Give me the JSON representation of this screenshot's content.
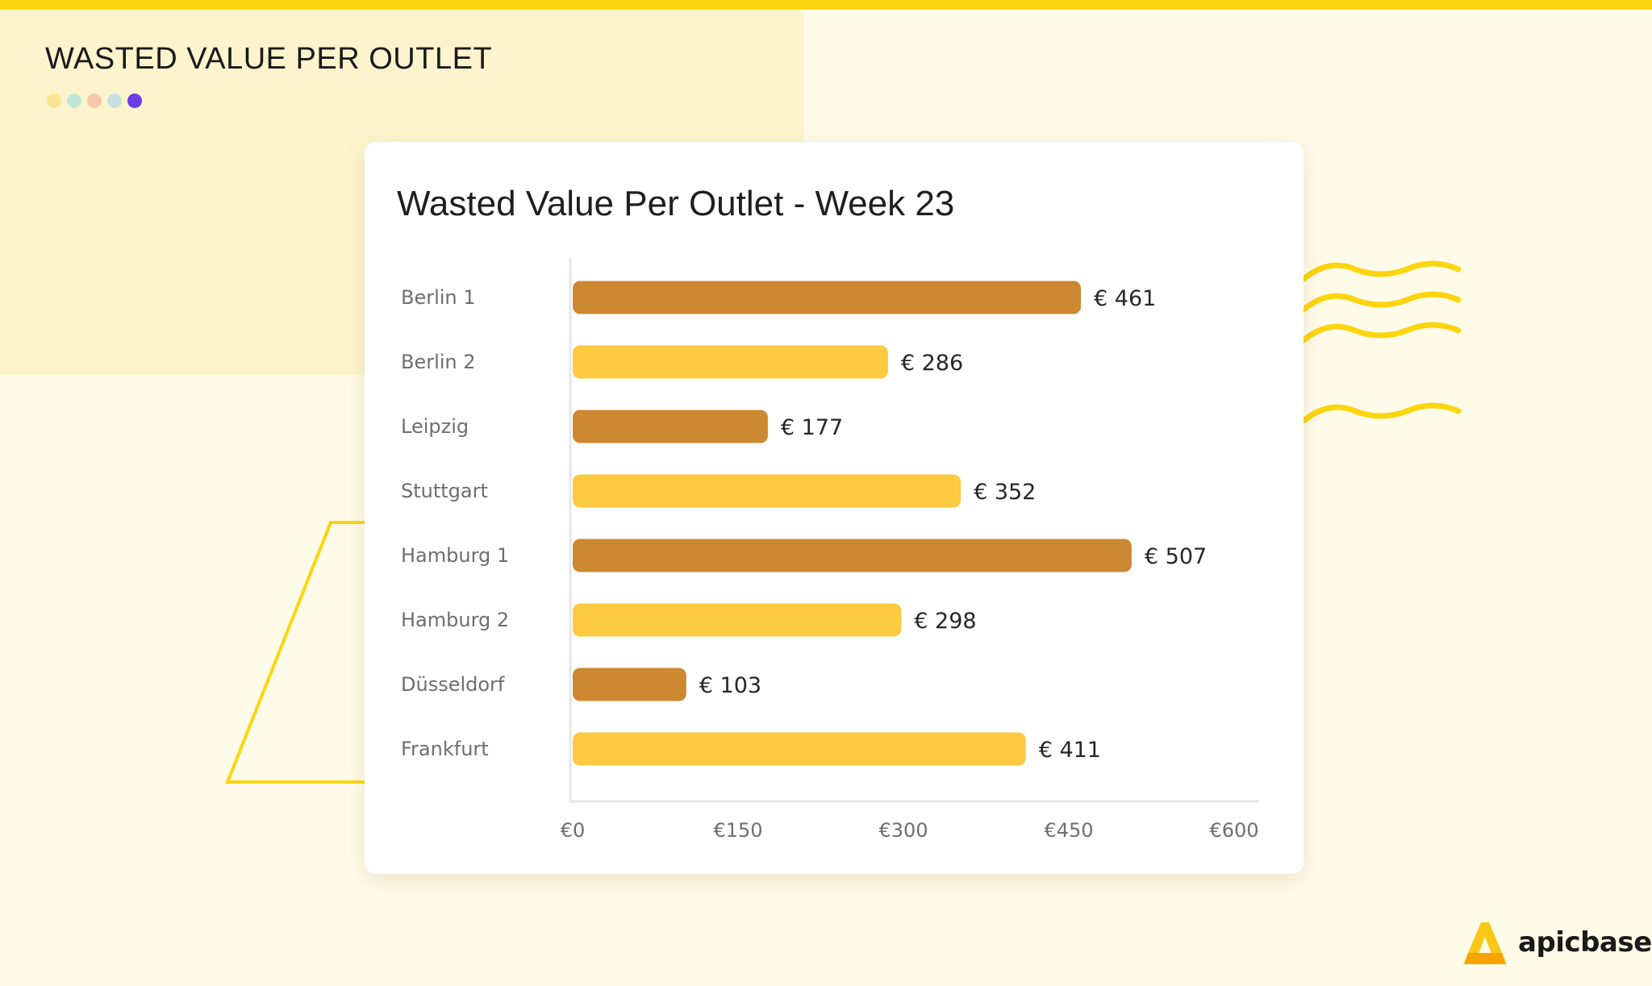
{
  "page": {
    "heading": "WASTED VALUE PER OUTLET",
    "dots": [
      "#fbe48f",
      "#bfe6d9",
      "#f9c7ac",
      "#c7dfe3",
      "#6b3be6"
    ],
    "logo": {
      "text": "apicbase",
      "icon": "apicbase-logo-icon",
      "color": "#fcc817"
    },
    "decoration": {
      "wave_color": "#fcd50f",
      "outline_color": "#fcd50f"
    }
  },
  "chart_data": {
    "type": "bar",
    "orientation": "horizontal",
    "title": "Wasted Value Per Outlet - Week 23",
    "xlabel": "",
    "ylabel": "",
    "categories": [
      "Berlin 1",
      "Berlin 2",
      "Leipzig",
      "Stuttgart",
      "Hamburg 1",
      "Hamburg 2",
      "Düsseldorf",
      "Frankfurt"
    ],
    "values": [
      461,
      286,
      177,
      352,
      507,
      298,
      103,
      411
    ],
    "value_labels": [
      "€ 461",
      "€ 286",
      "€ 177",
      "€ 352",
      "€ 507",
      "€ 298",
      "€ 103",
      "€ 411"
    ],
    "bar_colors": [
      "#cd8832",
      "#fcc93f",
      "#cd8832",
      "#fcc93f",
      "#cd8832",
      "#fcc93f",
      "#cd8832",
      "#fcc93f"
    ],
    "xlim": [
      0,
      600
    ],
    "xticks": [
      0,
      150,
      300,
      450,
      600
    ],
    "xtick_labels": [
      "€0",
      "€150",
      "€300",
      "€450",
      "€600"
    ],
    "grid": false,
    "legend": "none"
  }
}
